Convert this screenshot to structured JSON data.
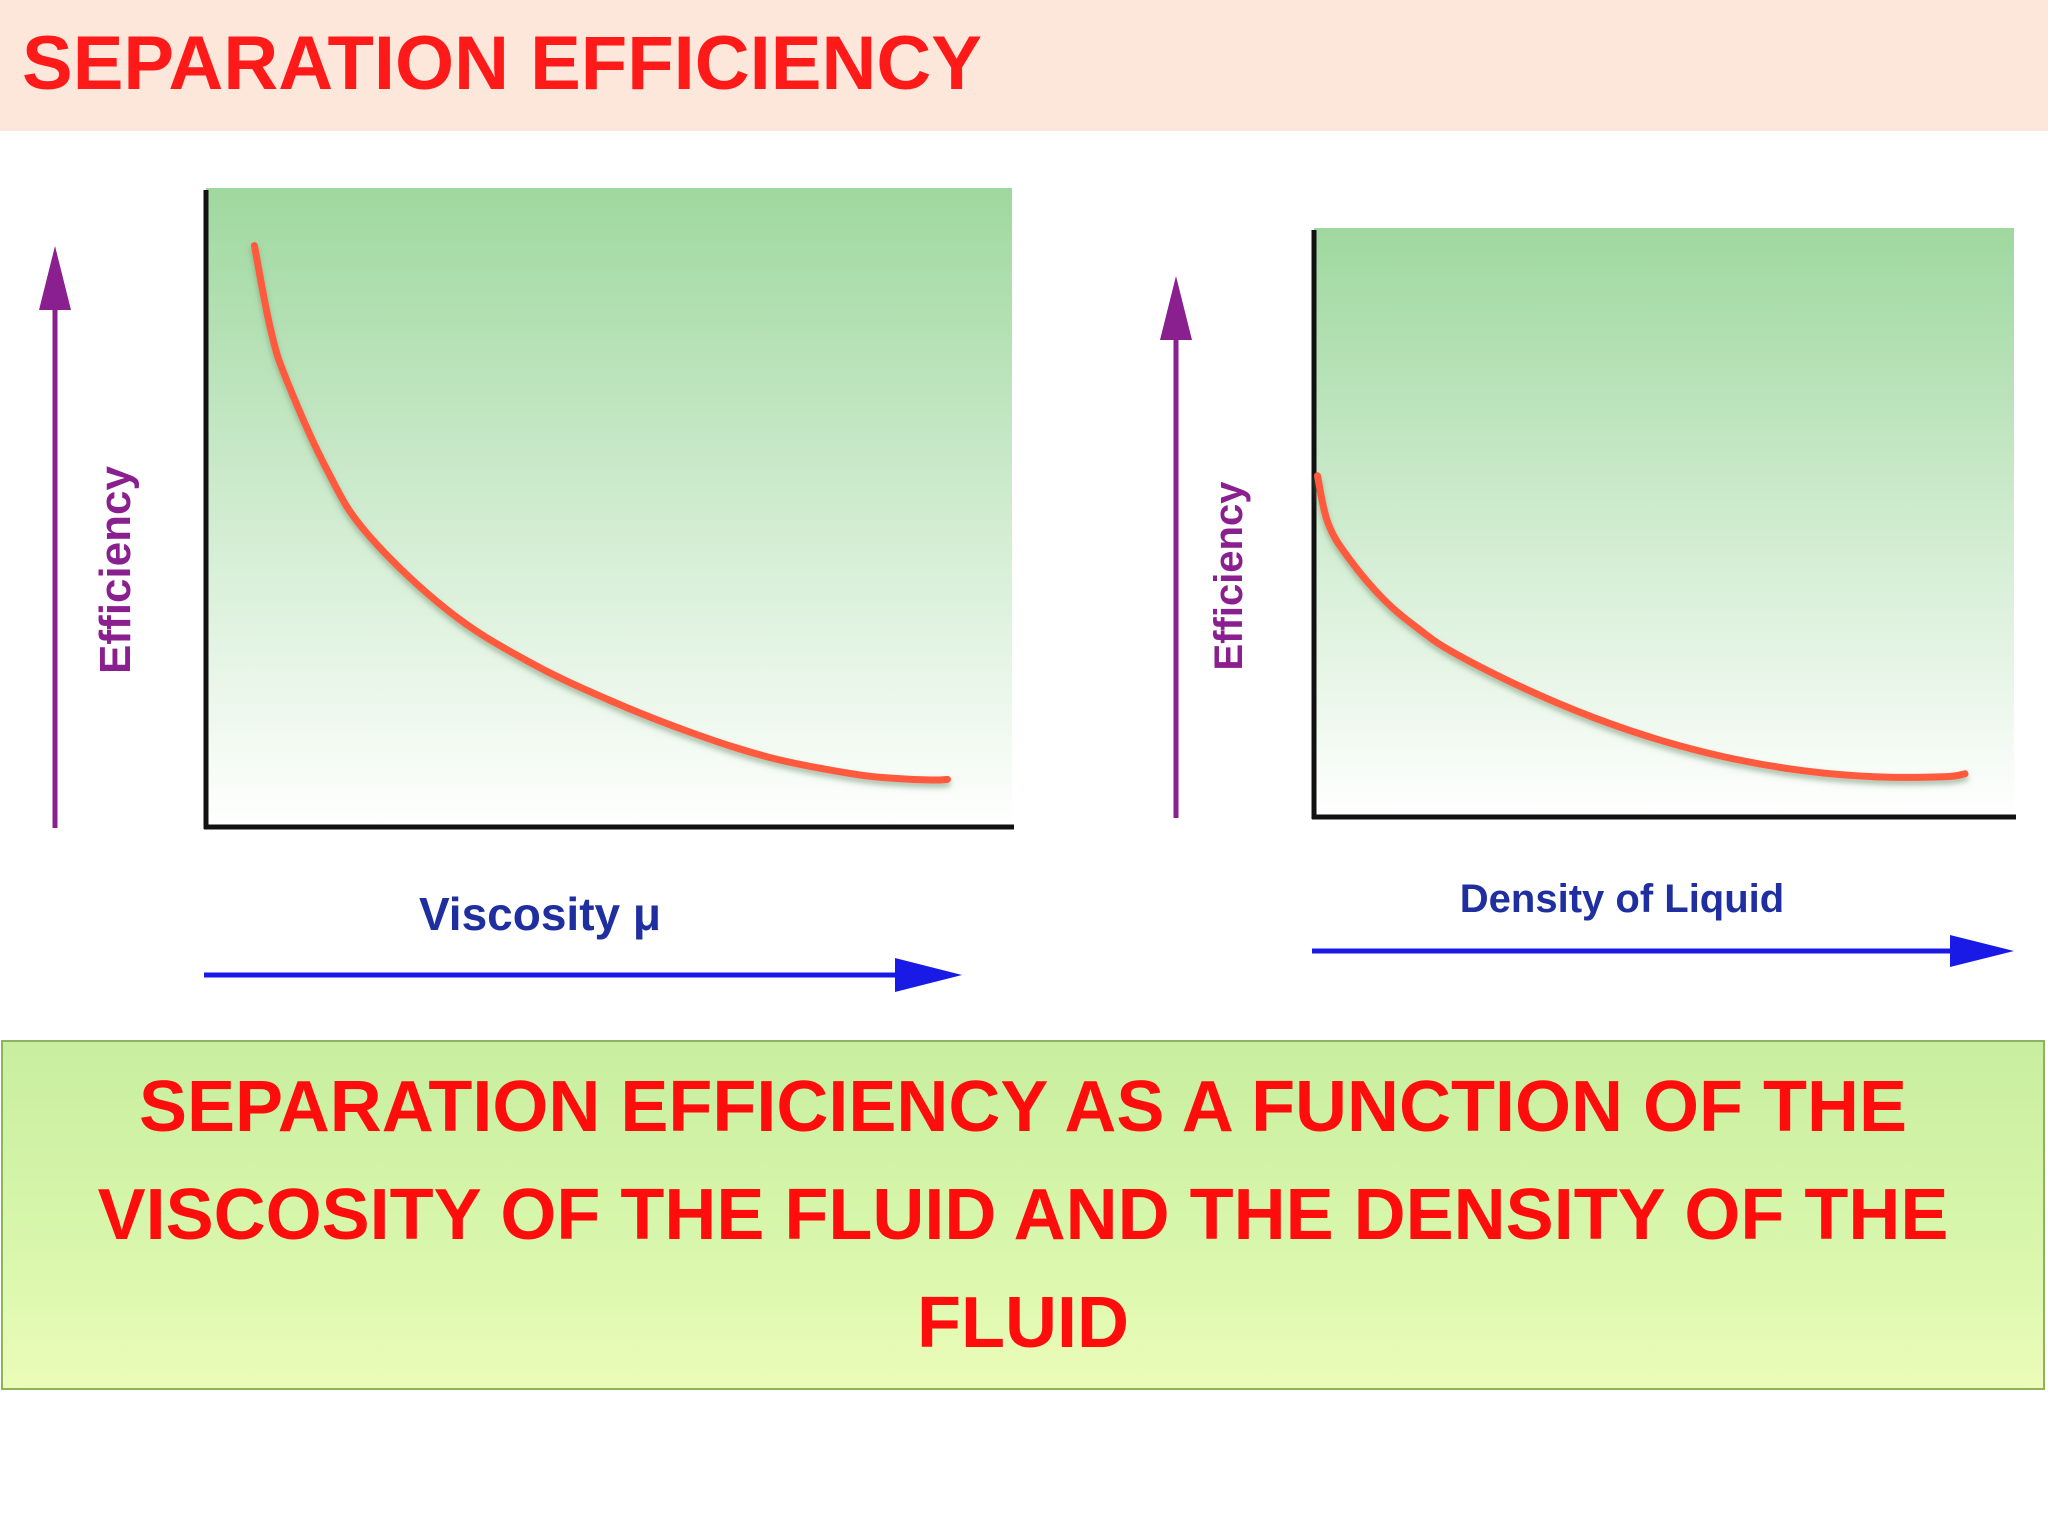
{
  "slide": {
    "title": "SEPARATION EFFICIENCY",
    "caption": "SEPARATION EFFICIENCY AS A FUNCTION OF THE VISCOSITY OF THE FLUID AND THE DENSITY OF THE FLUID"
  },
  "colors": {
    "title_text": "#ff1a1a",
    "title_bar": "#fde7da",
    "curve": "#ff5a3c",
    "y_arrow": "#8a1f8f",
    "x_arrow": "#1a1ae6",
    "x_label": "#1f2fa0",
    "y_label": "#8a1f8f",
    "plot_top": "#9fd89f",
    "plot_bottom": "#ffffff",
    "axis": "#111111"
  },
  "chart_data": [
    {
      "type": "line",
      "title": "",
      "xlabel": "Viscosity μ",
      "ylabel": "Efficiency",
      "xlim": [
        0,
        1
      ],
      "ylim": [
        0,
        1
      ],
      "grid": false,
      "legend": "none",
      "series": [
        {
          "x": [
            0.06,
            0.08,
            0.1,
            0.15,
            0.2,
            0.3,
            0.4,
            0.5,
            0.6,
            0.7,
            0.8,
            0.85,
            0.9,
            0.92
          ],
          "y": [
            0.91,
            0.78,
            0.7,
            0.56,
            0.46,
            0.34,
            0.26,
            0.2,
            0.15,
            0.11,
            0.085,
            0.078,
            0.075,
            0.076
          ]
        }
      ]
    },
    {
      "type": "line",
      "title": "",
      "xlabel": "Density of Liquid",
      "ylabel": "Efficiency",
      "xlim": [
        0,
        1
      ],
      "ylim": [
        0,
        1
      ],
      "grid": false,
      "legend": "none",
      "series": [
        {
          "x": [
            0.005,
            0.02,
            0.05,
            0.1,
            0.15,
            0.2,
            0.3,
            0.4,
            0.5,
            0.6,
            0.7,
            0.8,
            0.9,
            0.93
          ],
          "y": [
            0.58,
            0.5,
            0.44,
            0.37,
            0.32,
            0.28,
            0.22,
            0.17,
            0.13,
            0.1,
            0.08,
            0.07,
            0.07,
            0.075
          ]
        }
      ]
    }
  ]
}
